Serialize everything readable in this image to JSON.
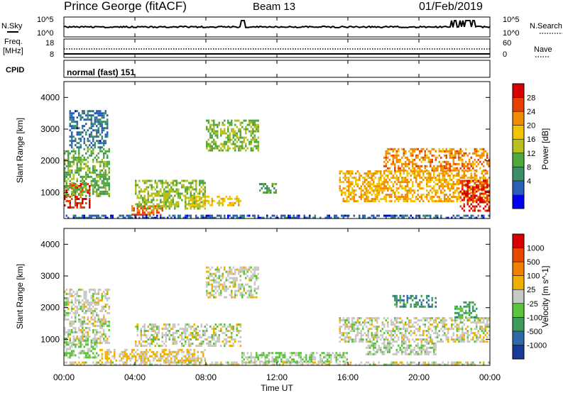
{
  "header": {
    "station": "Prince George (fitACF)",
    "beam": "Beam 13",
    "date": "01/Feb/2019"
  },
  "strips": {
    "nsky_label": "N.Sky",
    "nsearch_label": "N.Search",
    "exp_low": "10^0",
    "exp_high": "10^5",
    "freq_label": "Freq.",
    "freq_unit": "[MHz]",
    "freq_ticks": [
      "18",
      "8"
    ],
    "nave_label": "Nave",
    "nave_ticks": [
      "60",
      "0"
    ],
    "cpid_label": "CPID",
    "cpid_value": "normal (fast) 151"
  },
  "time_axis": {
    "label": "Time UT",
    "ticks": [
      "00:00",
      "04:00",
      "08:00",
      "12:00",
      "16:00",
      "20:00",
      "00:00"
    ]
  },
  "power_colorbar": {
    "label": "Power [dB]",
    "ticks": [
      "28",
      "24",
      "20",
      "16",
      "12",
      "8",
      "4"
    ],
    "colors": [
      "#0000ee",
      "#2a5fb8",
      "#3f8e6a",
      "#52a840",
      "#b8c020",
      "#f2c400",
      "#f08c00",
      "#e84000",
      "#d80000"
    ]
  },
  "velocity_colorbar": {
    "label": "Velocity [m s^-1]",
    "ticks": [
      "1000",
      "500",
      "100",
      "25",
      "-25",
      "-100",
      "-500",
      "-1000"
    ],
    "colors": [
      "#1a3a9a",
      "#2f6aa8",
      "#3d9c5c",
      "#5cc43a",
      "#c8c8c4",
      "#f0b000",
      "#f08000",
      "#e84800",
      "#d80000"
    ]
  },
  "chart_data": {
    "type": "heatmap",
    "title": "Prince George (fitACF) Beam 13 01/Feb/2019",
    "xlabel": "Time UT",
    "ylabel": "Slant Range [km]",
    "xlim": [
      0,
      24
    ],
    "ylim": [
      180,
      4500
    ],
    "yticks": [
      1000,
      2000,
      3000,
      4000
    ],
    "panels": [
      {
        "name": "Power",
        "unit": "dB",
        "colorbar_range": [
          0,
          30
        ],
        "echo_regions": [
          {
            "t_start": 0.0,
            "t_end": 1.5,
            "range_min": 500,
            "range_max": 1300,
            "value": 26
          },
          {
            "t_start": 0.0,
            "t_end": 2.6,
            "range_min": 900,
            "range_max": 2400,
            "value": 12
          },
          {
            "t_start": 0.3,
            "t_end": 2.5,
            "range_min": 2400,
            "range_max": 3600,
            "value": 6
          },
          {
            "t_start": 3.8,
            "t_end": 5.6,
            "range_min": 300,
            "range_max": 600,
            "value": 24
          },
          {
            "t_start": 4.0,
            "t_end": 8.0,
            "range_min": 500,
            "range_max": 1400,
            "value": 14
          },
          {
            "t_start": 7.0,
            "t_end": 10.0,
            "range_min": 600,
            "range_max": 900,
            "value": 18
          },
          {
            "t_start": 8.0,
            "t_end": 11.0,
            "range_min": 2300,
            "range_max": 3300,
            "value": 13
          },
          {
            "t_start": 11.0,
            "t_end": 12.0,
            "range_min": 1000,
            "range_max": 1300,
            "value": 11
          },
          {
            "t_start": 15.5,
            "t_end": 24.0,
            "range_min": 700,
            "range_max": 1700,
            "value": 20
          },
          {
            "t_start": 18.0,
            "t_end": 24.0,
            "range_min": 1700,
            "range_max": 2400,
            "value": 22
          },
          {
            "t_start": 22.3,
            "t_end": 24.0,
            "range_min": 400,
            "range_max": 1400,
            "value": 27
          },
          {
            "t_start": 0.0,
            "t_end": 24.0,
            "range_min": 180,
            "range_max": 300,
            "value": 5
          }
        ]
      },
      {
        "name": "Velocity",
        "unit": "m s^-1",
        "colorbar_range": [
          -1000,
          1000
        ],
        "echo_regions": [
          {
            "t_start": 0.0,
            "t_end": 2.6,
            "range_min": 900,
            "range_max": 2600,
            "value": 0
          },
          {
            "t_start": 0.0,
            "t_end": 2.0,
            "range_min": 400,
            "range_max": 1000,
            "value": -150
          },
          {
            "t_start": 2.0,
            "t_end": 8.0,
            "range_min": 300,
            "range_max": 700,
            "value": 150
          },
          {
            "t_start": 8.0,
            "t_end": 11.0,
            "range_min": 2300,
            "range_max": 3300,
            "value": 0
          },
          {
            "t_start": 4.0,
            "t_end": 10.0,
            "range_min": 800,
            "range_max": 1500,
            "value": 0
          },
          {
            "t_start": 10.0,
            "t_end": 16.0,
            "range_min": 300,
            "range_max": 600,
            "value": -120
          },
          {
            "t_start": 15.5,
            "t_end": 24.0,
            "range_min": 900,
            "range_max": 1700,
            "value": 0
          },
          {
            "t_start": 18.5,
            "t_end": 21.0,
            "range_min": 2000,
            "range_max": 2400,
            "value": -500
          },
          {
            "t_start": 22.0,
            "t_end": 23.3,
            "range_min": 1700,
            "range_max": 2200,
            "value": -400
          },
          {
            "t_start": 17.0,
            "t_end": 21.0,
            "range_min": 500,
            "range_max": 900,
            "value": -80
          },
          {
            "t_start": 0.0,
            "t_end": 24.0,
            "range_min": 180,
            "range_max": 300,
            "value": 10
          }
        ]
      }
    ]
  }
}
